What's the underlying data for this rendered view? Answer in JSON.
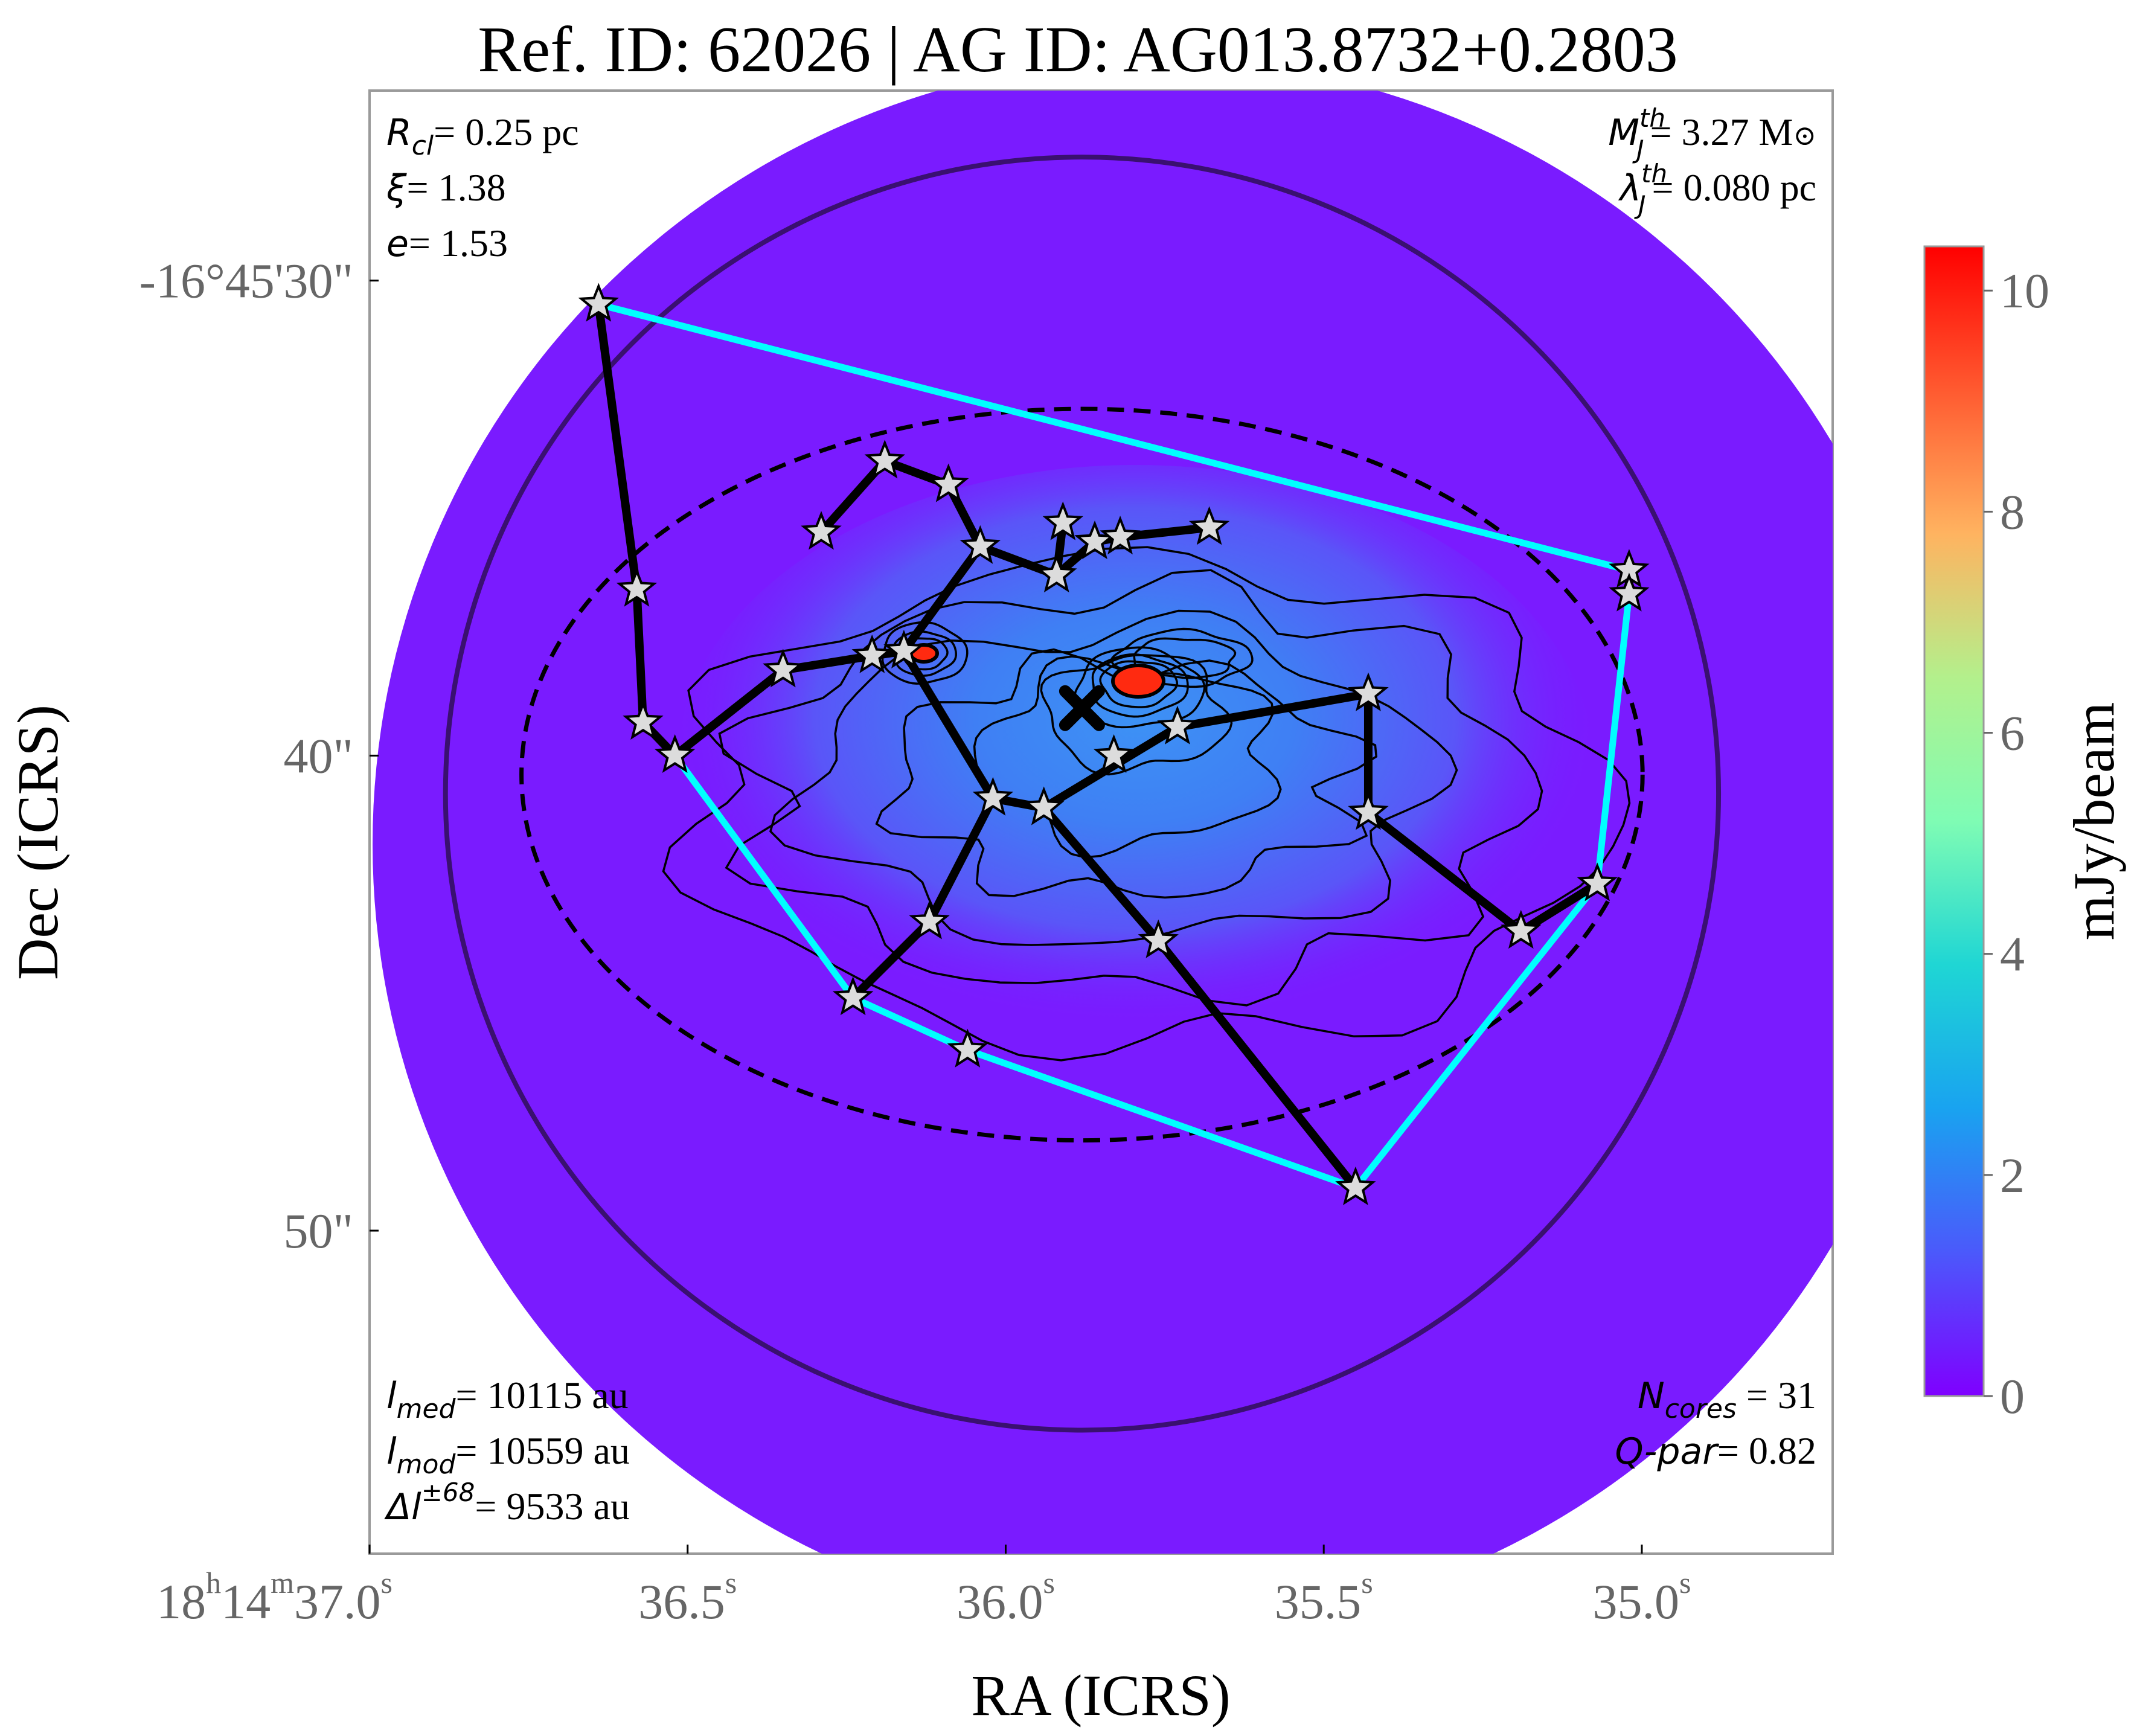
{
  "title": "Ref. ID: 62026 | AG ID: AG013.8732+0.2803",
  "xlabel": "RA (ICRS)",
  "ylabel": "Dec (ICRS)",
  "colorbar": {
    "label": "mJy/beam",
    "min": 0,
    "max": 10.4,
    "ticks": [
      "0",
      "2",
      "4",
      "6",
      "8",
      "10"
    ],
    "tick_values": [
      0,
      2,
      4,
      6,
      8,
      10
    ]
  },
  "annotations": {
    "top_left": [
      {
        "sym": "R",
        "sub": "cl",
        "sup": "",
        "val": "= 0.25 pc"
      },
      {
        "sym": "ξ",
        "sub": "",
        "sup": "",
        "val": "= 1.38"
      },
      {
        "sym": "e",
        "sub": "",
        "sup": "",
        "val": "= 1.53"
      }
    ],
    "top_right": [
      {
        "sym": "M",
        "sub": "J",
        "sup": "th",
        "val": "= 3.27 M",
        "extra": "⊙"
      },
      {
        "sym": "λ",
        "sub": "J",
        "sup": "th",
        "val": "= 0.080 pc",
        "extra": ""
      }
    ],
    "bottom_left": [
      {
        "sym": "l",
        "sub": "med",
        "sup": "",
        "val": "= 10115 au"
      },
      {
        "sym": "l",
        "sub": "mod",
        "sup": "",
        "val": "= 10559 au"
      },
      {
        "sym": "Δl",
        "sub": "",
        "sup": "±68",
        "val": "= 9533 au"
      }
    ],
    "bottom_right": [
      {
        "sym": "N",
        "sub": "cores",
        "val": " = 31"
      },
      {
        "sym": "Q-par",
        "sub": "",
        "val": "= 0.82"
      }
    ]
  },
  "x_ticks": [
    {
      "h": "18",
      "hu": "h",
      "m": "14",
      "mu": "m",
      "s": "37.0",
      "su": "s",
      "value": 37.0
    },
    {
      "s": "36.5",
      "su": "s",
      "value": 36.5
    },
    {
      "s": "36.0",
      "su": "s",
      "value": 36.0
    },
    {
      "s": "35.5",
      "su": "s",
      "value": 35.5
    },
    {
      "s": "35.0",
      "su": "s",
      "value": 35.0
    }
  ],
  "y_ticks": [
    {
      "label": "-16°45'30\"",
      "value": 30
    },
    {
      "label": "40\"",
      "value": 40
    },
    {
      "label": "50\"",
      "value": 50
    }
  ],
  "chart_data": {
    "type": "scatter",
    "x_axis": "RA seconds (18h14m)",
    "y_axis": "Dec arcsec (-16°45')",
    "xlim": [
      37.0,
      34.7
    ],
    "ylim": [
      56.8,
      26.0
    ],
    "colors": {
      "mst_edges": "#000000",
      "hull": "#00ffff",
      "map_bg": "#7a1bff",
      "map_blue": "#3d7bf5",
      "peak": "#ff2a10"
    },
    "cores": [
      [
        36.64,
        30.5
      ],
      [
        36.58,
        36.5
      ],
      [
        36.57,
        39.3
      ],
      [
        36.52,
        40.0
      ],
      [
        36.29,
        35.3
      ],
      [
        36.35,
        38.2
      ],
      [
        36.19,
        33.8
      ],
      [
        36.09,
        34.3
      ],
      [
        36.04,
        35.6
      ],
      [
        36.21,
        37.9
      ],
      [
        36.16,
        37.8
      ],
      [
        36.02,
        40.9
      ],
      [
        35.94,
        41.1
      ],
      [
        35.91,
        35.1
      ],
      [
        35.92,
        36.2
      ],
      [
        35.86,
        35.5
      ],
      [
        35.82,
        35.4
      ],
      [
        35.68,
        35.2
      ],
      [
        35.83,
        40.0
      ],
      [
        35.73,
        39.4
      ],
      [
        35.43,
        38.7
      ],
      [
        35.43,
        41.2
      ],
      [
        35.19,
        43.7
      ],
      [
        35.07,
        42.7
      ],
      [
        35.02,
        36.1
      ],
      [
        35.02,
        36.6
      ],
      [
        36.12,
        43.5
      ],
      [
        35.76,
        43.9
      ],
      [
        36.24,
        45.1
      ],
      [
        36.06,
        46.2
      ],
      [
        35.45,
        49.1
      ]
    ],
    "hull_edges": [
      [
        0,
        24
      ],
      [
        24,
        25
      ],
      [
        25,
        23
      ],
      [
        23,
        30
      ],
      [
        30,
        29
      ],
      [
        29,
        28
      ],
      [
        28,
        3
      ],
      [
        3,
        2
      ],
      [
        2,
        1
      ],
      [
        1,
        0
      ]
    ],
    "mst_edges": [
      [
        0,
        1
      ],
      [
        1,
        2
      ],
      [
        2,
        3
      ],
      [
        3,
        5
      ],
      [
        5,
        9
      ],
      [
        9,
        10
      ],
      [
        10,
        8
      ],
      [
        10,
        11
      ],
      [
        8,
        7
      ],
      [
        7,
        6
      ],
      [
        6,
        4
      ],
      [
        11,
        12
      ],
      [
        12,
        19
      ],
      [
        19,
        20
      ],
      [
        20,
        21
      ],
      [
        21,
        22
      ],
      [
        22,
        23
      ],
      [
        11,
        26
      ],
      [
        26,
        28
      ],
      [
        12,
        27
      ],
      [
        27,
        30
      ],
      [
        14,
        8
      ],
      [
        14,
        15
      ],
      [
        15,
        16
      ],
      [
        16,
        17
      ],
      [
        14,
        13
      ],
      [
        22,
        23
      ],
      [
        24,
        25
      ]
    ],
    "center_marker": {
      "ra": 35.88,
      "dec": 39.0
    },
    "circle": {
      "ra": 35.88,
      "dec": 40.8,
      "radius_arcsec": 13.4
    },
    "ellipse": {
      "ra": 35.88,
      "dec": 40.4,
      "semi_x_arcsec": 11.8,
      "semi_y_arcsec": 7.7
    }
  }
}
